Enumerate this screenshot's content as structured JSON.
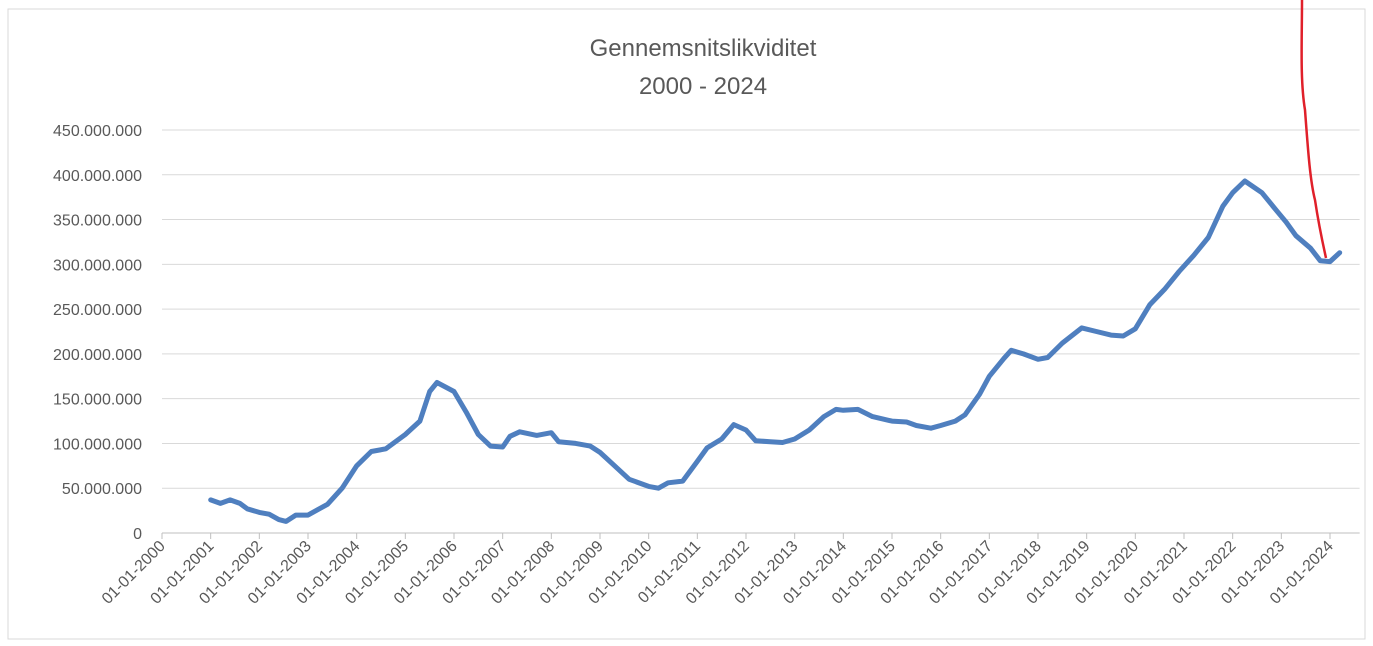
{
  "chart_data": {
    "type": "line",
    "title": "Gennemsnitslikviditet",
    "subtitle": "2000 - 2024",
    "color": "#4f7fbf",
    "x": [
      2001.0,
      2001.2,
      2001.4,
      2001.6,
      2001.75,
      2002.0,
      2002.2,
      2002.4,
      2002.55,
      2002.75,
      2003.0,
      2003.2,
      2003.4,
      2003.7,
      2004.0,
      2004.3,
      2004.6,
      2005.0,
      2005.3,
      2005.5,
      2005.65,
      2006.0,
      2006.25,
      2006.5,
      2006.75,
      2007.0,
      2007.15,
      2007.35,
      2007.7,
      2008.0,
      2008.15,
      2008.5,
      2008.8,
      2009.0,
      2009.3,
      2009.6,
      2010.0,
      2010.2,
      2010.4,
      2010.7,
      2011.0,
      2011.2,
      2011.5,
      2011.75,
      2012.0,
      2012.2,
      2012.5,
      2012.75,
      2013.0,
      2013.3,
      2013.6,
      2013.85,
      2014.0,
      2014.3,
      2014.6,
      2015.0,
      2015.3,
      2015.5,
      2015.8,
      2016.0,
      2016.3,
      2016.5,
      2016.8,
      2017.0,
      2017.3,
      2017.45,
      2017.7,
      2018.0,
      2018.2,
      2018.5,
      2018.9,
      2019.2,
      2019.5,
      2019.75,
      2020.0,
      2020.3,
      2020.6,
      2020.9,
      2021.2,
      2021.5,
      2021.8,
      2022.0,
      2022.25,
      2022.6,
      2022.9,
      2023.1,
      2023.3,
      2023.6,
      2023.8,
      2024.0,
      2024.2
    ],
    "values": [
      37000000,
      33000000,
      37000000,
      33000000,
      27000000,
      23000000,
      21000000,
      15000000,
      13000000,
      20000000,
      20000000,
      26000000,
      32000000,
      50000000,
      75000000,
      91000000,
      94000000,
      110000000,
      125000000,
      158000000,
      168000000,
      158000000,
      135000000,
      110000000,
      97000000,
      96000000,
      108000000,
      113000000,
      109000000,
      112000000,
      102000000,
      100000000,
      97000000,
      90000000,
      75000000,
      60000000,
      52000000,
      50000000,
      56000000,
      58000000,
      80000000,
      95000000,
      105000000,
      121000000,
      115000000,
      103000000,
      102000000,
      101000000,
      105000000,
      115000000,
      130000000,
      138000000,
      137000000,
      138000000,
      130000000,
      125000000,
      124000000,
      120000000,
      117000000,
      120000000,
      125000000,
      132000000,
      155000000,
      175000000,
      195000000,
      204000000,
      200000000,
      194000000,
      196000000,
      212000000,
      229000000,
      225000000,
      221000000,
      220000000,
      228000000,
      255000000,
      272000000,
      292000000,
      310000000,
      330000000,
      365000000,
      380000000,
      393000000,
      380000000,
      360000000,
      347000000,
      332000000,
      318000000,
      304000000,
      303000000,
      313000000
    ],
    "xlim": [
      2000,
      2024.3
    ],
    "xticks": [
      {
        "value": 2000,
        "label": "01-01-2000"
      },
      {
        "value": 2001,
        "label": "01-01-2001"
      },
      {
        "value": 2002,
        "label": "01-01-2002"
      },
      {
        "value": 2003,
        "label": "01-01-2003"
      },
      {
        "value": 2004,
        "label": "01-01-2004"
      },
      {
        "value": 2005,
        "label": "01-01-2005"
      },
      {
        "value": 2006,
        "label": "01-01-2006"
      },
      {
        "value": 2007,
        "label": "01-01-2007"
      },
      {
        "value": 2008,
        "label": "01-01-2008"
      },
      {
        "value": 2009,
        "label": "01-01-2009"
      },
      {
        "value": 2010,
        "label": "01-01-2010"
      },
      {
        "value": 2011,
        "label": "01-01-2011"
      },
      {
        "value": 2012,
        "label": "01-01-2012"
      },
      {
        "value": 2013,
        "label": "01-01-2013"
      },
      {
        "value": 2014,
        "label": "01-01-2014"
      },
      {
        "value": 2015,
        "label": "01-01-2015"
      },
      {
        "value": 2016,
        "label": "01-01-2016"
      },
      {
        "value": 2017,
        "label": "01-01-2017"
      },
      {
        "value": 2018,
        "label": "01-01-2018"
      },
      {
        "value": 2019,
        "label": "01-01-2019"
      },
      {
        "value": 2020,
        "label": "01-01-2020"
      },
      {
        "value": 2021,
        "label": "01-01-2021"
      },
      {
        "value": 2022,
        "label": "01-01-2022"
      },
      {
        "value": 2023,
        "label": "01-01-2023"
      },
      {
        "value": 2024,
        "label": "01-01-2024"
      }
    ],
    "ylim": [
      0,
      450000000
    ],
    "yticks": [
      0,
      {
        "value": 50000000,
        "label": "50.000.000"
      },
      {
        "value": 100000000,
        "label": "100.000.000"
      },
      {
        "value": 150000000,
        "label": "150.000.000"
      },
      {
        "value": 200000000,
        "label": "200.000.000"
      },
      {
        "value": 250000000,
        "label": "250.000.000"
      },
      {
        "value": 300000000,
        "label": "300.000.000"
      },
      {
        "value": 350000000,
        "label": "350.000.000"
      },
      {
        "value": 400000000,
        "label": "400.000.000"
      },
      {
        "value": 450000000,
        "label": "450.000.000"
      }
    ],
    "grid": true
  }
}
